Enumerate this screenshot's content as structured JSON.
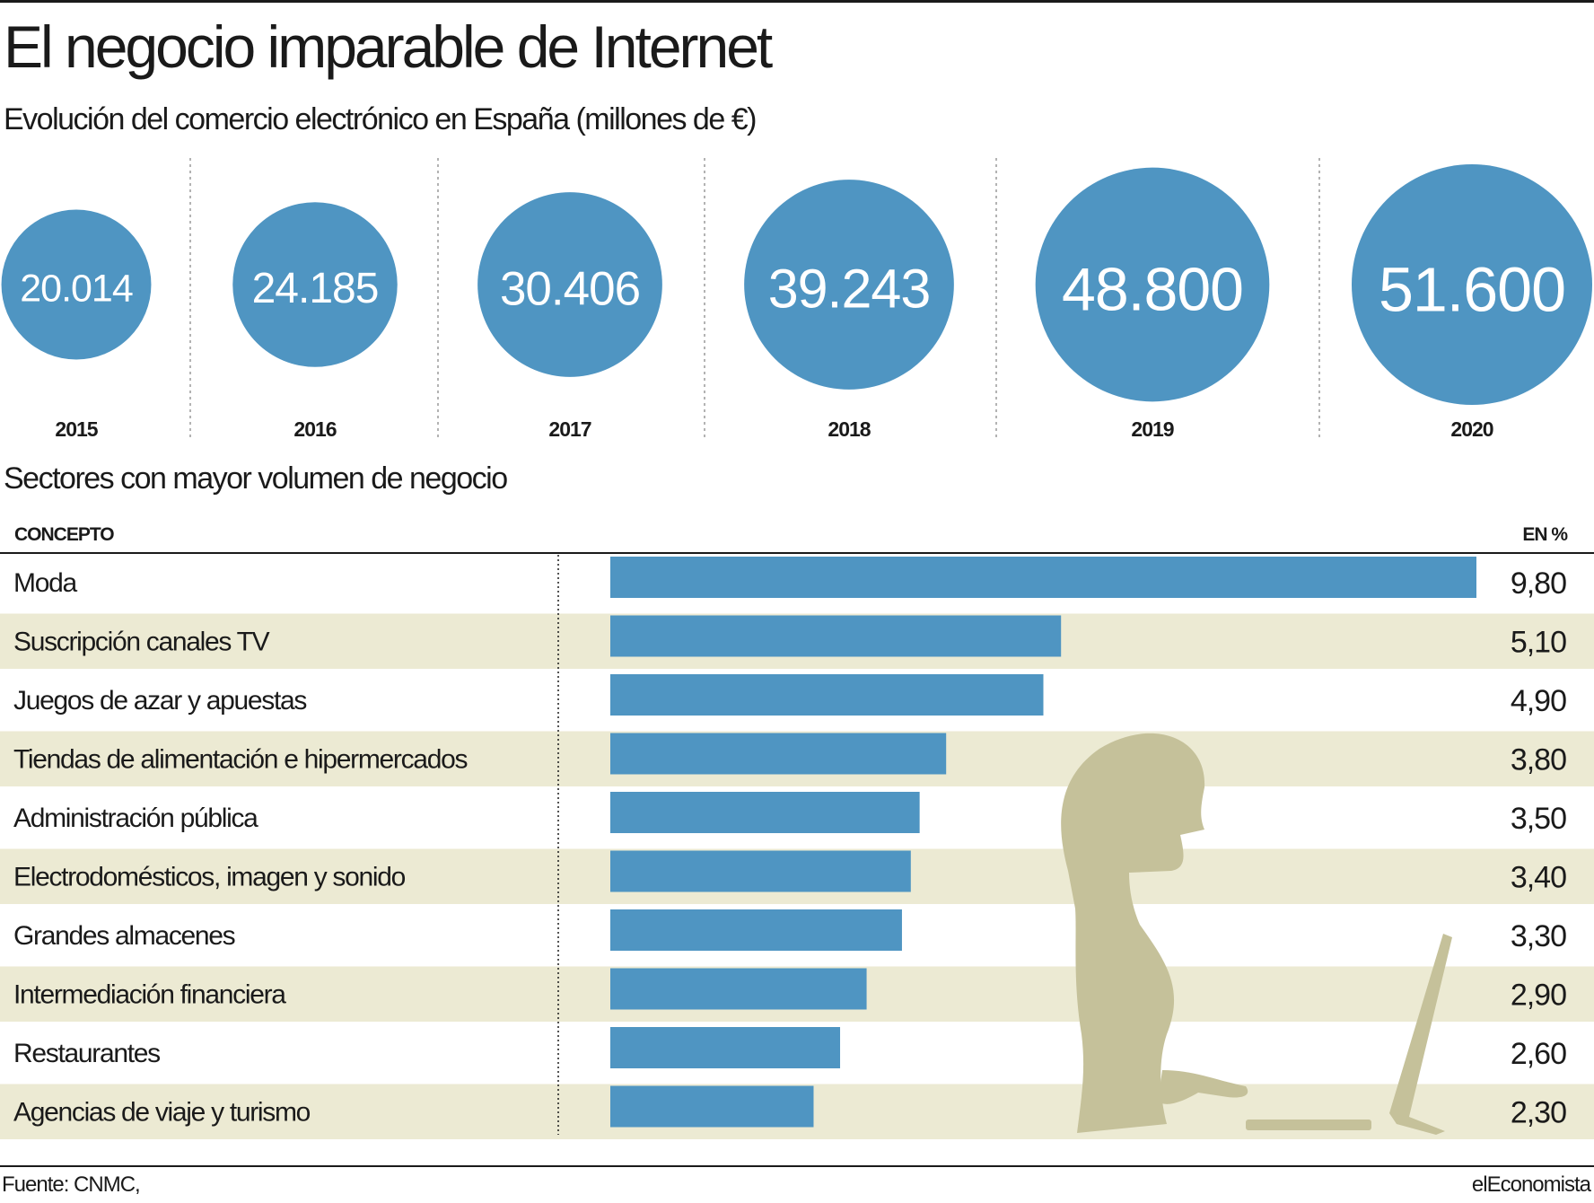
{
  "title": "El negocio imparable de Internet",
  "subtitle": "Evolución del comercio electrónico en España (millones de €)",
  "sectors_title": "Sectores con mayor volumen de negocio",
  "table_headers": {
    "concept": "CONCEPTO",
    "percent": "EN %"
  },
  "source": "Fuente: CNMC,",
  "brand": "elEconomista",
  "colors": {
    "bubble": "#4f95c2",
    "bar": "#4f95c2",
    "band": "#ecead3",
    "silhouette": "#c5c19a",
    "text": "#1a1a1a"
  },
  "illustration": "woman-at-computer-silhouette",
  "chart_data": [
    {
      "type": "bubble",
      "categories": [
        "2015",
        "2016",
        "2017",
        "2018",
        "2019",
        "2020"
      ],
      "values": [
        20014,
        24185,
        30406,
        39243,
        48800,
        51600
      ],
      "value_labels": [
        "20.014",
        "24.185",
        "30.406",
        "39.243",
        "48.800",
        "51.600"
      ]
    },
    {
      "type": "bar",
      "orientation": "horizontal",
      "categories": [
        "Moda",
        "Suscripción canales TV",
        "Juegos de azar y apuestas",
        "Tiendas de alimentación e hipermercados",
        "Administración pública",
        "Electrodomésticos, imagen y sonido",
        "Grandes almacenes",
        "Intermediación financiera",
        "Restaurantes",
        "Agencias de viaje y turismo"
      ],
      "values": [
        9.8,
        5.1,
        4.9,
        3.8,
        3.5,
        3.4,
        3.3,
        2.9,
        2.6,
        2.3
      ],
      "value_labels": [
        "9,80",
        "5,10",
        "4,90",
        "3,80",
        "3,50",
        "3,40",
        "3,30",
        "2,90",
        "2,60",
        "2,30"
      ]
    }
  ]
}
